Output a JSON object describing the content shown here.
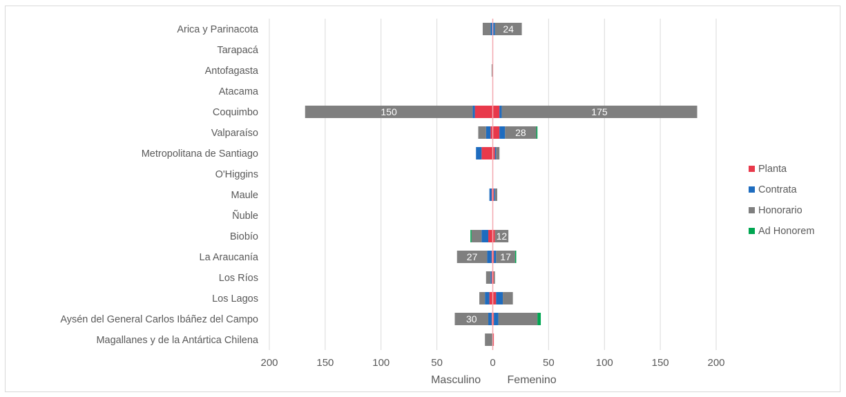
{
  "chart_data": {
    "type": "bar",
    "orientation": "horizontal",
    "stacked": true,
    "title": "",
    "categories": [
      "Arica y Parinacota",
      "Tarapacá",
      "Antofagasta",
      "Atacama",
      "Coquimbo",
      "Valparaíso",
      "Metropolitana de Santiago",
      "O'Higgins",
      "Maule",
      "Ñuble",
      "Biobío",
      "La Araucanía",
      "Los Ríos",
      "Los Lagos",
      "Aysén del General Carlos Ibáñez del Campo",
      "Magallanes y de la Antártica Chilena"
    ],
    "x_axis": {
      "min": -200,
      "max": 200,
      "step": 50,
      "tick_labels": [
        "200",
        "150",
        "100",
        "50",
        "0",
        "50",
        "100",
        "150",
        "200"
      ],
      "left_label": "Masculino",
      "right_label": "Femenino"
    },
    "grid": true,
    "legend_position": "right",
    "series": [
      {
        "name": "Planta",
        "color": "#E8394B",
        "masculino": [
          0,
          0,
          0,
          0,
          16,
          2,
          10,
          0,
          1,
          0,
          4,
          1,
          1,
          3,
          1,
          0
        ],
        "femenino": [
          0,
          0,
          0,
          0,
          6,
          6,
          2,
          0,
          1,
          0,
          2,
          1,
          1,
          3,
          1,
          1
        ]
      },
      {
        "name": "Contrata",
        "color": "#1E6CBF",
        "masculino": [
          2,
          0,
          0,
          0,
          2,
          4,
          5,
          0,
          2,
          0,
          6,
          4,
          1,
          4,
          3,
          0
        ],
        "femenino": [
          2,
          0,
          0,
          0,
          2,
          5,
          1,
          0,
          1,
          0,
          0,
          2,
          0,
          6,
          4,
          0
        ],
        "labels_masculino": [
          "",
          "",
          "",
          "",
          "",
          "",
          "",
          "",
          "",
          "",
          "",
          "",
          "",
          "",
          "",
          ""
        ],
        "labels_femenino": [
          "",
          "",
          "",
          "",
          "",
          "",
          "",
          "",
          "",
          "",
          "",
          "",
          "",
          "",
          "",
          ""
        ]
      },
      {
        "name": "Honorario",
        "color": "#7F7F7F",
        "masculino": [
          7,
          0,
          1,
          0,
          150,
          7,
          0,
          0,
          0,
          0,
          9,
          27,
          4,
          5,
          30,
          7
        ],
        "femenino": [
          24,
          0,
          0,
          0,
          175,
          28,
          3,
          0,
          2,
          0,
          12,
          17,
          1,
          9,
          35,
          0
        ],
        "labels_masculino": [
          "",
          "",
          "",
          "",
          "150",
          "",
          "",
          "",
          "",
          "",
          "",
          "27",
          "",
          "",
          "30",
          ""
        ],
        "labels_femenino": [
          "24",
          "",
          "",
          "",
          "175",
          "28",
          "",
          "",
          "",
          "",
          "12",
          "17",
          "",
          "",
          "",
          ""
        ]
      },
      {
        "name": "Ad Honorem",
        "color": "#00A651",
        "masculino": [
          0,
          0,
          0,
          0,
          0,
          0,
          0,
          0,
          0,
          0,
          1,
          0,
          0,
          0,
          0,
          0
        ],
        "femenino": [
          0,
          0,
          0,
          0,
          0,
          1,
          0,
          0,
          0,
          0,
          0,
          1,
          0,
          0,
          3,
          0
        ]
      }
    ]
  }
}
